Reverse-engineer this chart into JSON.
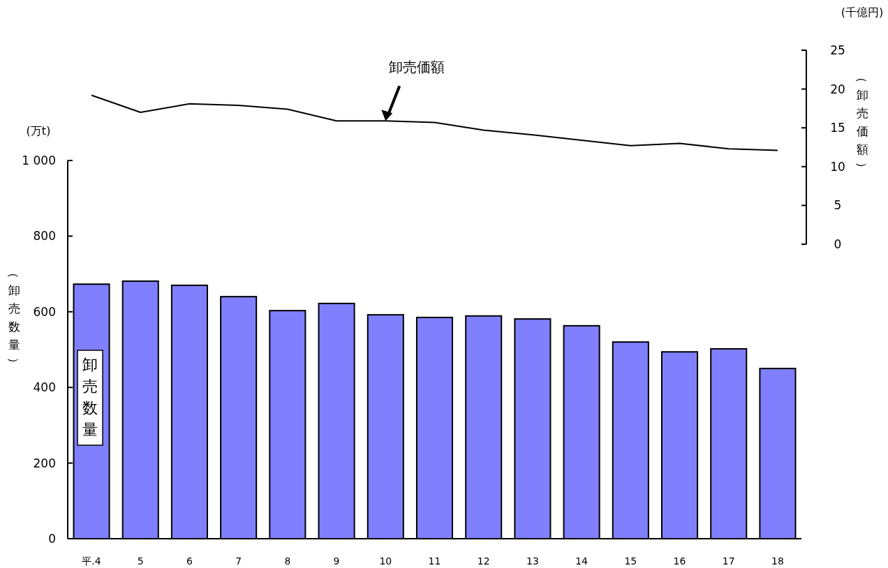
{
  "chart_data": [
    {
      "type": "line",
      "ylabel": "（卸売価額）",
      "annotations": [
        "(千億円)"
      ],
      "tick_labels": "y",
      "categories": [
        null,
        null,
        null,
        null,
        null,
        null,
        null,
        null,
        null,
        null,
        null,
        null,
        null,
        null,
        null
      ],
      "series": [
        {
          "name": "卸売価額",
          "color": "#000000",
          "values": [
            19.2,
            17.0,
            18.1,
            17.9,
            17.4,
            15.9,
            15.9,
            15.7,
            14.7,
            14.1,
            13.4,
            12.7,
            13.0,
            12.3,
            12.1
          ]
        }
      ],
      "ylim": [
        0,
        25
      ],
      "yticks": [
        0,
        5,
        10,
        15,
        20,
        25
      ]
    },
    {
      "type": "bar",
      "ylabel": "（卸売数量）",
      "annotations": [
        "(万t)"
      ],
      "categories": [
        "平.4",
        "5",
        "6",
        "7",
        "8",
        "9",
        "10",
        "11",
        "12",
        "13",
        "14",
        "15",
        "16",
        "17",
        "18"
      ],
      "series": [
        {
          "name": "卸売数量",
          "color": "#8080ff",
          "values": [
            673,
            681,
            670,
            640,
            603,
            622,
            592,
            585,
            589,
            581,
            563,
            520,
            494,
            502,
            450
          ]
        }
      ],
      "ylim": [
        0,
        1000
      ],
      "yticks": [
        0,
        200,
        400,
        600,
        800,
        {
          "value": 1000,
          "label": "1 000"
        }
      ]
    }
  ]
}
